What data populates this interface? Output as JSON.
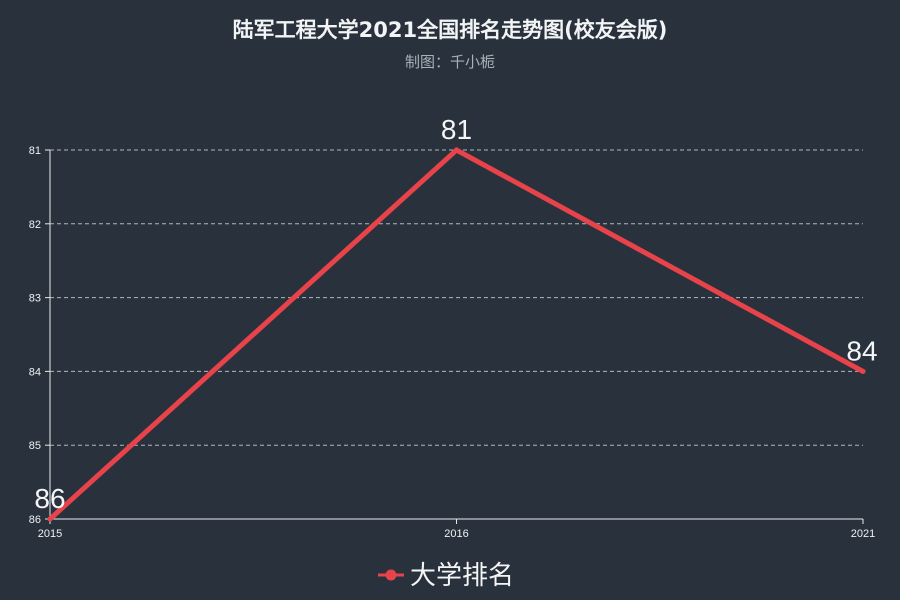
{
  "title": "陆军工程大学2021全国排名走势图(校友会版)",
  "subtitle": "制图：千小栀",
  "colors": {
    "background": "#29323c",
    "series": "#e8434a",
    "grid": "#c9ced4",
    "text": "#f2f4f6"
  },
  "chart_data": {
    "type": "line",
    "categories": [
      "2015",
      "2016",
      "2021"
    ],
    "series": [
      {
        "name": "大学排名",
        "values": [
          86,
          81,
          84
        ]
      }
    ],
    "y_ticks": [
      "81",
      "82",
      "83",
      "84",
      "85",
      "86"
    ],
    "ylim": [
      81,
      86
    ],
    "y_inverted": true,
    "grid": true,
    "legend_position": "bottom-center",
    "data_labels": true
  }
}
